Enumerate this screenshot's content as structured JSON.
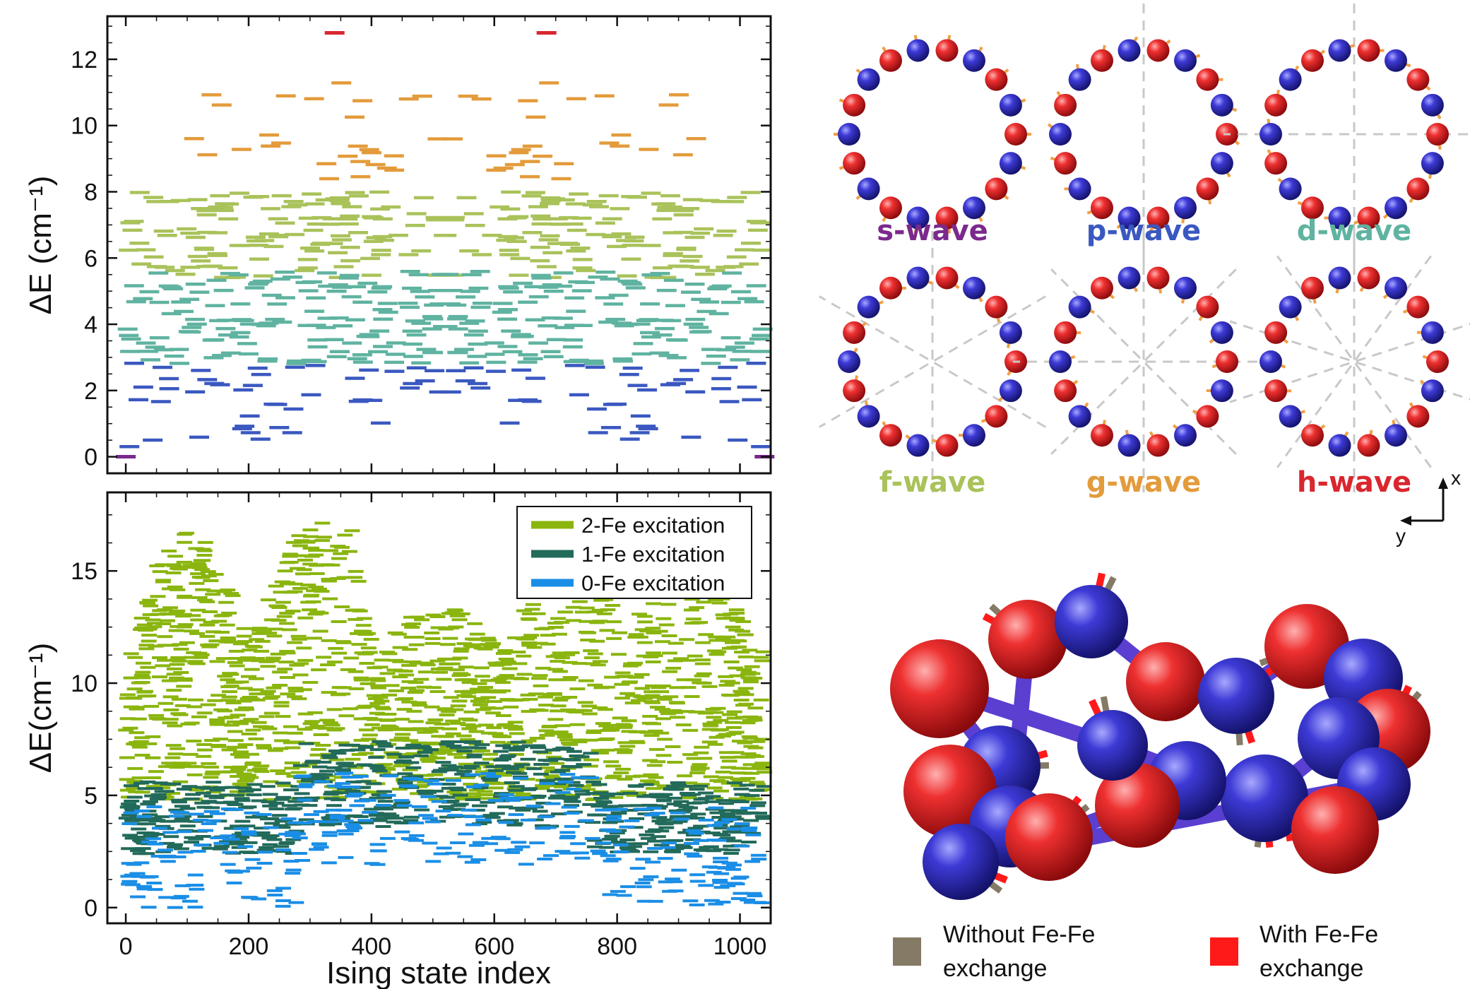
{
  "colors": {
    "s": "#7b2a8c",
    "p": "#3a58c0",
    "d": "#5fb3a0",
    "f": "#a9c25a",
    "g": "#e39b3b",
    "h": "#d9272e",
    "fe2": "#8ab50e",
    "fe1": "#226a5a",
    "fe0": "#1a8ee6",
    "bead_red": "#e8262a",
    "bead_blue": "#3230c7",
    "arrow_orange": "#f0a044",
    "without_fe": "#857a66",
    "with_fe": "#ff1a1a"
  },
  "chart_data": [
    {
      "type": "scatter",
      "title": "",
      "xlabel": "",
      "ylabel": "ΔE (cm⁻¹)",
      "xlim": [
        -30,
        1050
      ],
      "ylim": [
        -0.5,
        13.3
      ],
      "yticks": [
        0,
        2,
        4,
        6,
        8,
        10,
        12
      ],
      "xticks": [
        0,
        200,
        400,
        600,
        800,
        1000
      ],
      "grid": false,
      "marker": "horizontal dash",
      "series": [
        {
          "key": "h",
          "points": [
            [
              340,
              12.8
            ],
            [
              685,
              12.8
            ]
          ]
        },
        {
          "key": "s",
          "points": [
            [
              0,
              0.0
            ],
            [
              1040,
              0.0
            ]
          ]
        },
        {
          "key": "g",
          "band": [
            8.1,
            11.3
          ],
          "x_range": [
            60,
            990
          ],
          "density": 55
        },
        {
          "key": "f",
          "band": [
            5.4,
            8.0
          ],
          "x_range": [
            0,
            1040
          ],
          "density": 260
        },
        {
          "key": "d",
          "band": [
            2.8,
            5.6
          ],
          "x_range": [
            0,
            1040
          ],
          "density": 300
        },
        {
          "key": "p",
          "band": [
            0.3,
            2.9
          ],
          "x_range": [
            0,
            1040
          ],
          "density": 95
        }
      ]
    },
    {
      "type": "scatter",
      "title": "",
      "xlabel": "Ising state index",
      "ylabel": "ΔE(cm⁻¹)",
      "xlim": [
        -30,
        1050
      ],
      "ylim": [
        -0.7,
        18.5
      ],
      "yticks": [
        0,
        5,
        10,
        15
      ],
      "xticks": [
        0,
        200,
        400,
        600,
        800,
        1000
      ],
      "grid": false,
      "legend_position": "top-right",
      "series": [
        {
          "name": "2-Fe excitation",
          "key": "fe2",
          "band": [
            4.8,
            18.0
          ],
          "x_range": [
            0,
            1040
          ]
        },
        {
          "name": "1-Fe excitation",
          "key": "fe1",
          "band": [
            2.4,
            7.4
          ],
          "x_range": [
            0,
            1040
          ]
        },
        {
          "name": "0-Fe excitation",
          "key": "fe0",
          "band": [
            0.0,
            6.2
          ],
          "x_range": [
            0,
            1040
          ]
        }
      ]
    }
  ],
  "waves": [
    {
      "label": "s-wave",
      "key": "s",
      "beads": 18
    },
    {
      "label": "p-wave",
      "key": "p",
      "beads": 18
    },
    {
      "label": "d-wave",
      "key": "d",
      "beads": 18
    },
    {
      "label": "f-wave",
      "key": "f",
      "beads": 18
    },
    {
      "label": "g-wave",
      "key": "g",
      "beads": 18
    },
    {
      "label": "h-wave",
      "key": "h",
      "beads": 18
    }
  ],
  "axes_triad": {
    "x": "x",
    "y": "y"
  },
  "bottom_legend": [
    {
      "label_line1": "Without Fe-Fe",
      "label_line2": "exchange",
      "key": "without_fe"
    },
    {
      "label_line1": "With Fe-Fe",
      "label_line2": "exchange",
      "key": "with_fe"
    }
  ]
}
